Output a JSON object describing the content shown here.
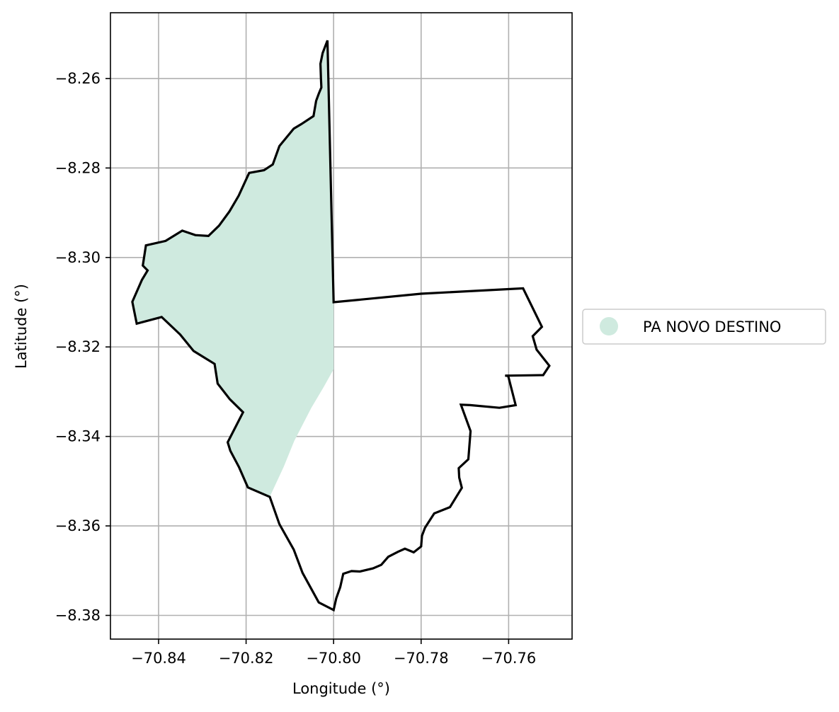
{
  "chart_data": {
    "type": "map",
    "xlabel": "Longitude (°)",
    "ylabel": "Latitude (°)",
    "xlim": [
      -70.851,
      -70.7455
    ],
    "ylim": [
      -8.3853,
      -8.2453
    ],
    "grid": true,
    "x_ticks": [
      {
        "value": -70.84,
        "label": "−70.84"
      },
      {
        "value": -70.82,
        "label": "−70.82"
      },
      {
        "value": -70.8,
        "label": "−70.80"
      },
      {
        "value": -70.78,
        "label": "−70.78"
      },
      {
        "value": -70.76,
        "label": "−70.76"
      }
    ],
    "y_ticks": [
      {
        "value": -8.26,
        "label": "−8.26"
      },
      {
        "value": -8.28,
        "label": "−8.28"
      },
      {
        "value": -8.3,
        "label": "−8.30"
      },
      {
        "value": -8.32,
        "label": "−8.32"
      },
      {
        "value": -8.34,
        "label": "−8.34"
      },
      {
        "value": -8.36,
        "label": "−8.36"
      },
      {
        "value": -8.38,
        "label": "−8.38"
      }
    ],
    "legend": {
      "placement": "right",
      "entries": [
        {
          "label": "PA NOVO DESTINO",
          "color": "#cfeadf"
        }
      ]
    },
    "fill_color": "#cfeadf",
    "boundary_color": "#000000",
    "filled_area": [
      [
        -70.8014,
        -8.2515
      ],
      [
        -70.8025,
        -8.2543
      ],
      [
        -70.803,
        -8.2567
      ],
      [
        -70.8029,
        -8.26
      ],
      [
        -70.8028,
        -8.262
      ],
      [
        -70.8034,
        -8.2634
      ],
      [
        -70.804,
        -8.265
      ],
      [
        -70.8046,
        -8.2684
      ],
      [
        -70.8074,
        -8.2702
      ],
      [
        -70.8091,
        -8.2712
      ],
      [
        -70.8124,
        -8.2751
      ],
      [
        -70.8139,
        -8.2792
      ],
      [
        -70.8159,
        -8.2805
      ],
      [
        -70.8193,
        -8.2811
      ],
      [
        -70.8217,
        -8.2862
      ],
      [
        -70.8238,
        -8.2897
      ],
      [
        -70.8262,
        -8.2929
      ],
      [
        -70.8286,
        -8.2952
      ],
      [
        -70.8316,
        -8.295
      ],
      [
        -70.8346,
        -8.294
      ],
      [
        -70.8384,
        -8.2963
      ],
      [
        -70.8429,
        -8.2973
      ],
      [
        -70.8436,
        -8.3018
      ],
      [
        -70.8425,
        -8.3029
      ],
      [
        -70.8438,
        -8.305
      ],
      [
        -70.846,
        -8.3099
      ],
      [
        -70.845,
        -8.3148
      ],
      [
        -70.8393,
        -8.3133
      ],
      [
        -70.8351,
        -8.3172
      ],
      [
        -70.832,
        -8.3209
      ],
      [
        -70.8272,
        -8.3238
      ],
      [
        -70.8265,
        -8.3282
      ],
      [
        -70.8237,
        -8.3317
      ],
      [
        -70.8207,
        -8.3346
      ],
      [
        -70.8242,
        -8.3413
      ],
      [
        -70.8236,
        -8.3432
      ],
      [
        -70.8216,
        -8.3469
      ],
      [
        -70.8196,
        -8.3514
      ],
      [
        -70.8146,
        -8.3535
      ],
      [
        -70.8114,
        -8.3468
      ],
      [
        -70.809,
        -8.341
      ],
      [
        -70.8051,
        -8.3336
      ],
      [
        -70.8023,
        -8.329
      ],
      [
        -70.8,
        -8.325
      ],
      [
        -70.8,
        -8.31
      ],
      [
        -70.8014,
        -8.2515
      ]
    ],
    "boundary": [
      [
        -70.8014,
        -8.2515
      ],
      [
        -70.8,
        -8.31
      ],
      [
        -70.78,
        -8.3081
      ],
      [
        -70.7567,
        -8.3069
      ],
      [
        -70.7524,
        -8.3155
      ],
      [
        -70.7545,
        -8.3176
      ],
      [
        -70.7536,
        -8.3206
      ],
      [
        -70.7507,
        -8.3242
      ],
      [
        -70.7521,
        -8.3263
      ],
      [
        -70.7595,
        -8.3264
      ],
      [
        -70.7608,
        -8.3264
      ],
      [
        -70.7601,
        -8.3265
      ],
      [
        -70.7584,
        -8.333
      ],
      [
        -70.7621,
        -8.3336
      ],
      [
        -70.7688,
        -8.333
      ],
      [
        -70.7709,
        -8.3329
      ],
      [
        -70.7687,
        -8.3388
      ],
      [
        -70.7692,
        -8.3451
      ],
      [
        -70.7714,
        -8.3471
      ],
      [
        -70.7713,
        -8.3492
      ],
      [
        -70.7707,
        -8.3515
      ],
      [
        -70.7734,
        -8.3558
      ],
      [
        -70.777,
        -8.3572
      ],
      [
        -70.7791,
        -8.3604
      ],
      [
        -70.7798,
        -8.3622
      ],
      [
        -70.78,
        -8.3646
      ],
      [
        -70.7817,
        -8.3659
      ],
      [
        -70.7837,
        -8.3651
      ],
      [
        -70.7853,
        -8.3658
      ],
      [
        -70.7875,
        -8.3669
      ],
      [
        -70.7891,
        -8.3687
      ],
      [
        -70.791,
        -8.3695
      ],
      [
        -70.794,
        -8.3702
      ],
      [
        -70.7959,
        -8.3701
      ],
      [
        -70.7978,
        -8.3707
      ],
      [
        -70.7985,
        -8.3737
      ],
      [
        -70.7994,
        -8.3762
      ],
      [
        -70.8,
        -8.3788
      ],
      [
        -70.8034,
        -8.3771
      ],
      [
        -70.8071,
        -8.3705
      ],
      [
        -70.8091,
        -8.3653
      ],
      [
        -70.8124,
        -8.3596
      ],
      [
        -70.8146,
        -8.3535
      ],
      [
        -70.8196,
        -8.3514
      ],
      [
        -70.8216,
        -8.3469
      ],
      [
        -70.8236,
        -8.3432
      ],
      [
        -70.8242,
        -8.3413
      ],
      [
        -70.8207,
        -8.3346
      ],
      [
        -70.8237,
        -8.3317
      ],
      [
        -70.8265,
        -8.3282
      ],
      [
        -70.8272,
        -8.3238
      ],
      [
        -70.832,
        -8.3209
      ],
      [
        -70.8351,
        -8.3172
      ],
      [
        -70.8393,
        -8.3133
      ],
      [
        -70.845,
        -8.3148
      ],
      [
        -70.846,
        -8.3099
      ],
      [
        -70.8438,
        -8.305
      ],
      [
        -70.8425,
        -8.3029
      ],
      [
        -70.8436,
        -8.3018
      ],
      [
        -70.8429,
        -8.2973
      ],
      [
        -70.8384,
        -8.2963
      ],
      [
        -70.8346,
        -8.294
      ],
      [
        -70.8316,
        -8.295
      ],
      [
        -70.8286,
        -8.2952
      ],
      [
        -70.8262,
        -8.2929
      ],
      [
        -70.8238,
        -8.2897
      ],
      [
        -70.8217,
        -8.2862
      ],
      [
        -70.8193,
        -8.2811
      ],
      [
        -70.8159,
        -8.2805
      ],
      [
        -70.8139,
        -8.2792
      ],
      [
        -70.8124,
        -8.2751
      ],
      [
        -70.8091,
        -8.2712
      ],
      [
        -70.8074,
        -8.2702
      ],
      [
        -70.8046,
        -8.2684
      ],
      [
        -70.804,
        -8.265
      ],
      [
        -70.8034,
        -8.2634
      ],
      [
        -70.8028,
        -8.262
      ],
      [
        -70.8029,
        -8.26
      ],
      [
        -70.803,
        -8.2567
      ],
      [
        -70.8025,
        -8.2543
      ],
      [
        -70.8014,
        -8.2515
      ]
    ]
  }
}
